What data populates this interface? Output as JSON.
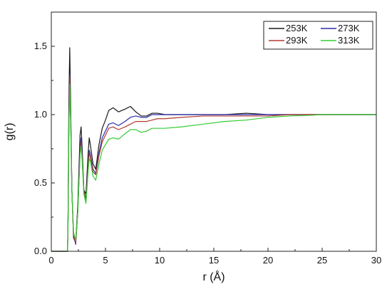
{
  "chart_data": {
    "type": "line",
    "title": "",
    "xlabel": "r (Å)",
    "ylabel": "g(r)",
    "xlim": [
      0,
      30
    ],
    "ylim": [
      0,
      1.75
    ],
    "xticks": [
      0,
      5,
      10,
      15,
      20,
      25,
      30
    ],
    "yticks": [
      0.0,
      0.5,
      1.0,
      1.5
    ],
    "xtick_labels": [
      "0",
      "5",
      "10",
      "15",
      "20",
      "25",
      "30"
    ],
    "ytick_labels": [
      "0.0",
      "0.5",
      "1.0",
      "1.5"
    ],
    "grid": false,
    "legend_position": "top-right",
    "series": [
      {
        "name": "253K",
        "color": "#1a1a1a",
        "points": [
          [
            0,
            0
          ],
          [
            1.5,
            0
          ],
          [
            1.55,
            0.3
          ],
          [
            1.62,
            1.1
          ],
          [
            1.7,
            1.49
          ],
          [
            1.78,
            1.1
          ],
          [
            1.9,
            0.45
          ],
          [
            2.05,
            0.1
          ],
          [
            2.25,
            0.06
          ],
          [
            2.45,
            0.35
          ],
          [
            2.65,
            0.85
          ],
          [
            2.75,
            0.91
          ],
          [
            2.85,
            0.75
          ],
          [
            3.0,
            0.45
          ],
          [
            3.2,
            0.42
          ],
          [
            3.4,
            0.72
          ],
          [
            3.5,
            0.83
          ],
          [
            3.6,
            0.78
          ],
          [
            3.85,
            0.64
          ],
          [
            4.1,
            0.6
          ],
          [
            4.4,
            0.78
          ],
          [
            4.7,
            0.9
          ],
          [
            5.0,
            0.96
          ],
          [
            5.3,
            1.03
          ],
          [
            5.7,
            1.05
          ],
          [
            6.2,
            1.02
          ],
          [
            6.8,
            1.04
          ],
          [
            7.3,
            1.06
          ],
          [
            7.8,
            1.02
          ],
          [
            8.3,
            0.99
          ],
          [
            8.8,
            0.99
          ],
          [
            9.3,
            1.01
          ],
          [
            9.8,
            1.01
          ],
          [
            10.5,
            1.0
          ],
          [
            12,
            1.0
          ],
          [
            14,
            1.0
          ],
          [
            16,
            1.0
          ],
          [
            18,
            1.01
          ],
          [
            20,
            1.0
          ],
          [
            22,
            1.0
          ],
          [
            24,
            1.0
          ],
          [
            25,
            1.0
          ],
          [
            27,
            1.0
          ],
          [
            30,
            1.0
          ]
        ]
      },
      {
        "name": "273K",
        "color": "#2b2bb0",
        "points": [
          [
            0,
            0
          ],
          [
            1.5,
            0
          ],
          [
            1.55,
            0.25
          ],
          [
            1.62,
            0.95
          ],
          [
            1.7,
            1.3
          ],
          [
            1.78,
            1.0
          ],
          [
            1.9,
            0.45
          ],
          [
            2.05,
            0.12
          ],
          [
            2.25,
            0.05
          ],
          [
            2.45,
            0.3
          ],
          [
            2.65,
            0.75
          ],
          [
            2.75,
            0.83
          ],
          [
            2.85,
            0.7
          ],
          [
            3.0,
            0.45
          ],
          [
            3.2,
            0.38
          ],
          [
            3.4,
            0.65
          ],
          [
            3.5,
            0.74
          ],
          [
            3.6,
            0.71
          ],
          [
            3.85,
            0.6
          ],
          [
            4.1,
            0.57
          ],
          [
            4.4,
            0.72
          ],
          [
            4.7,
            0.83
          ],
          [
            5.0,
            0.88
          ],
          [
            5.3,
            0.93
          ],
          [
            5.7,
            0.94
          ],
          [
            6.2,
            0.92
          ],
          [
            6.8,
            0.95
          ],
          [
            7.3,
            0.98
          ],
          [
            7.8,
            0.99
          ],
          [
            8.3,
            0.98
          ],
          [
            8.8,
            0.98
          ],
          [
            9.3,
            1.0
          ],
          [
            9.8,
            1.0
          ],
          [
            10.5,
            1.0
          ],
          [
            12,
            1.0
          ],
          [
            14,
            1.0
          ],
          [
            16,
            1.0
          ],
          [
            18,
            1.0
          ],
          [
            20,
            1.0
          ],
          [
            22,
            1.0
          ],
          [
            24,
            1.0
          ],
          [
            25,
            1.0
          ],
          [
            27,
            1.0
          ],
          [
            30,
            1.0
          ]
        ]
      },
      {
        "name": "293K",
        "color": "#b03a2e",
        "points": [
          [
            0,
            0
          ],
          [
            1.5,
            0
          ],
          [
            1.55,
            0.24
          ],
          [
            1.62,
            0.9
          ],
          [
            1.7,
            1.28
          ],
          [
            1.78,
            0.98
          ],
          [
            1.9,
            0.44
          ],
          [
            2.05,
            0.12
          ],
          [
            2.25,
            0.06
          ],
          [
            2.45,
            0.3
          ],
          [
            2.65,
            0.72
          ],
          [
            2.75,
            0.8
          ],
          [
            2.85,
            0.68
          ],
          [
            3.0,
            0.44
          ],
          [
            3.2,
            0.37
          ],
          [
            3.4,
            0.63
          ],
          [
            3.5,
            0.72
          ],
          [
            3.6,
            0.69
          ],
          [
            3.85,
            0.58
          ],
          [
            4.1,
            0.56
          ],
          [
            4.4,
            0.7
          ],
          [
            4.7,
            0.8
          ],
          [
            5.0,
            0.85
          ],
          [
            5.3,
            0.9
          ],
          [
            5.7,
            0.91
          ],
          [
            6.2,
            0.89
          ],
          [
            6.8,
            0.91
          ],
          [
            7.3,
            0.93
          ],
          [
            7.8,
            0.95
          ],
          [
            8.3,
            0.95
          ],
          [
            8.8,
            0.95
          ],
          [
            9.3,
            0.96
          ],
          [
            9.8,
            0.97
          ],
          [
            10.5,
            0.97
          ],
          [
            12,
            0.98
          ],
          [
            14,
            0.99
          ],
          [
            16,
            0.99
          ],
          [
            18,
            0.99
          ],
          [
            20,
            0.99
          ],
          [
            22,
            1.0
          ],
          [
            24,
            1.0
          ],
          [
            25,
            1.0
          ],
          [
            27,
            1.0
          ],
          [
            30,
            1.0
          ]
        ]
      },
      {
        "name": "313K",
        "color": "#33cc33",
        "points": [
          [
            0,
            0
          ],
          [
            1.5,
            0
          ],
          [
            1.55,
            0.25
          ],
          [
            1.62,
            0.9
          ],
          [
            1.7,
            1.22
          ],
          [
            1.78,
            0.96
          ],
          [
            1.9,
            0.45
          ],
          [
            2.05,
            0.14
          ],
          [
            2.25,
            0.08
          ],
          [
            2.45,
            0.3
          ],
          [
            2.65,
            0.7
          ],
          [
            2.75,
            0.77
          ],
          [
            2.85,
            0.66
          ],
          [
            3.0,
            0.42
          ],
          [
            3.2,
            0.35
          ],
          [
            3.4,
            0.59
          ],
          [
            3.5,
            0.68
          ],
          [
            3.6,
            0.66
          ],
          [
            3.85,
            0.55
          ],
          [
            4.1,
            0.52
          ],
          [
            4.4,
            0.64
          ],
          [
            4.7,
            0.74
          ],
          [
            5.0,
            0.78
          ],
          [
            5.3,
            0.82
          ],
          [
            5.7,
            0.83
          ],
          [
            6.2,
            0.82
          ],
          [
            6.8,
            0.86
          ],
          [
            7.3,
            0.89
          ],
          [
            7.8,
            0.89
          ],
          [
            8.3,
            0.87
          ],
          [
            8.8,
            0.88
          ],
          [
            9.3,
            0.9
          ],
          [
            9.8,
            0.9
          ],
          [
            10.5,
            0.9
          ],
          [
            12,
            0.91
          ],
          [
            14,
            0.93
          ],
          [
            16,
            0.95
          ],
          [
            18,
            0.96
          ],
          [
            20,
            0.98
          ],
          [
            22,
            0.99
          ],
          [
            24,
            0.995
          ],
          [
            25,
            1.0
          ],
          [
            27,
            1.0
          ],
          [
            30,
            1.0
          ]
        ]
      }
    ]
  }
}
